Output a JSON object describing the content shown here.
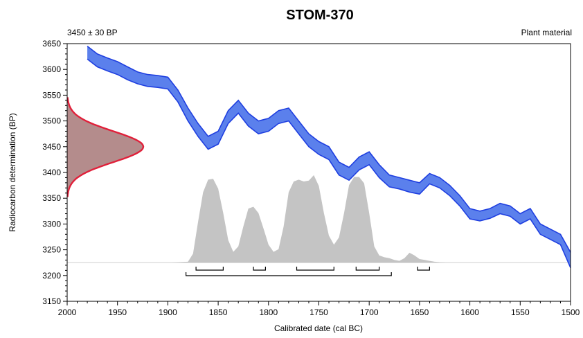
{
  "chart_data": {
    "type": "area",
    "title": "STOM-370",
    "subtitle_left": "3450 ± 30 BP",
    "subtitle_right": "Plant material",
    "xlabel": "Calibrated date (cal BC)",
    "ylabel": "Radiocarbon determination (BP)",
    "xlim": [
      2000,
      1500
    ],
    "ylim": [
      3150,
      3650
    ],
    "x_ticks": [
      "2000",
      "1950",
      "1900",
      "1850",
      "1800",
      "1750",
      "1700",
      "1650",
      "1600",
      "1550",
      "1500"
    ],
    "y_ticks": [
      "3150",
      "3200",
      "3250",
      "3300",
      "3350",
      "3400",
      "3450",
      "3500",
      "3550",
      "3600",
      "3650"
    ],
    "grid": false,
    "colors": {
      "calibration_band": "#5b80ec",
      "calibration_edge": "#1f3fe0",
      "radiocarbon_fill": "#b48c8c",
      "radiocarbon_edge": "#e0203a",
      "posterior_fill": "#c4c4c4"
    },
    "radiocarbon": {
      "mean": 3450,
      "sd": 30
    },
    "calibration_curve": {
      "x": [
        1980,
        1970,
        1960,
        1950,
        1940,
        1930,
        1920,
        1910,
        1900,
        1890,
        1880,
        1870,
        1860,
        1850,
        1840,
        1830,
        1820,
        1810,
        1800,
        1790,
        1780,
        1770,
        1760,
        1750,
        1740,
        1730,
        1720,
        1710,
        1700,
        1690,
        1680,
        1670,
        1660,
        1650,
        1640,
        1630,
        1620,
        1610,
        1600,
        1590,
        1580,
        1570,
        1560,
        1550,
        1540,
        1530,
        1520,
        1510,
        1500
      ],
      "upper": [
        3645,
        3630,
        3622,
        3615,
        3605,
        3595,
        3590,
        3588,
        3585,
        3560,
        3525,
        3495,
        3470,
        3480,
        3520,
        3540,
        3515,
        3500,
        3505,
        3520,
        3525,
        3500,
        3475,
        3460,
        3450,
        3420,
        3410,
        3430,
        3440,
        3415,
        3395,
        3390,
        3385,
        3380,
        3398,
        3390,
        3375,
        3355,
        3330,
        3325,
        3330,
        3340,
        3335,
        3320,
        3330,
        3300,
        3290,
        3280,
        3245
      ],
      "lower": [
        3620,
        3605,
        3597,
        3590,
        3580,
        3572,
        3567,
        3565,
        3562,
        3537,
        3500,
        3470,
        3445,
        3455,
        3495,
        3515,
        3490,
        3475,
        3480,
        3495,
        3500,
        3475,
        3450,
        3435,
        3425,
        3395,
        3385,
        3405,
        3415,
        3390,
        3372,
        3368,
        3362,
        3358,
        3378,
        3370,
        3355,
        3335,
        3310,
        3306,
        3311,
        3320,
        3315,
        3300,
        3310,
        3280,
        3270,
        3260,
        3215
      ]
    },
    "posterior": {
      "x": [
        1900,
        1880,
        1875,
        1870,
        1865,
        1860,
        1855,
        1850,
        1845,
        1840,
        1835,
        1830,
        1825,
        1820,
        1815,
        1810,
        1805,
        1800,
        1795,
        1790,
        1785,
        1780,
        1775,
        1770,
        1765,
        1760,
        1755,
        1750,
        1745,
        1740,
        1735,
        1730,
        1725,
        1720,
        1715,
        1710,
        1705,
        1700,
        1695,
        1690,
        1685,
        1680,
        1675,
        1670,
        1665,
        1660,
        1655,
        1650,
        1645,
        1640,
        1635,
        1630,
        1620
      ],
      "density": [
        0.0,
        0.01,
        0.1,
        0.45,
        0.78,
        0.92,
        0.93,
        0.82,
        0.55,
        0.25,
        0.12,
        0.18,
        0.4,
        0.6,
        0.62,
        0.55,
        0.38,
        0.2,
        0.12,
        0.15,
        0.4,
        0.78,
        0.9,
        0.92,
        0.9,
        0.91,
        0.97,
        0.85,
        0.55,
        0.3,
        0.2,
        0.28,
        0.55,
        0.86,
        0.95,
        0.95,
        0.88,
        0.55,
        0.18,
        0.08,
        0.06,
        0.05,
        0.03,
        0.02,
        0.05,
        0.11,
        0.08,
        0.04,
        0.03,
        0.02,
        0.01,
        0.005,
        0.0
      ]
    },
    "ranges_68": [
      [
        1872,
        1845
      ],
      [
        1815,
        1803
      ],
      [
        1772,
        1735
      ],
      [
        1713,
        1690
      ],
      [
        1652,
        1640
      ]
    ],
    "ranges_95": [
      [
        1882,
        1678
      ]
    ]
  }
}
